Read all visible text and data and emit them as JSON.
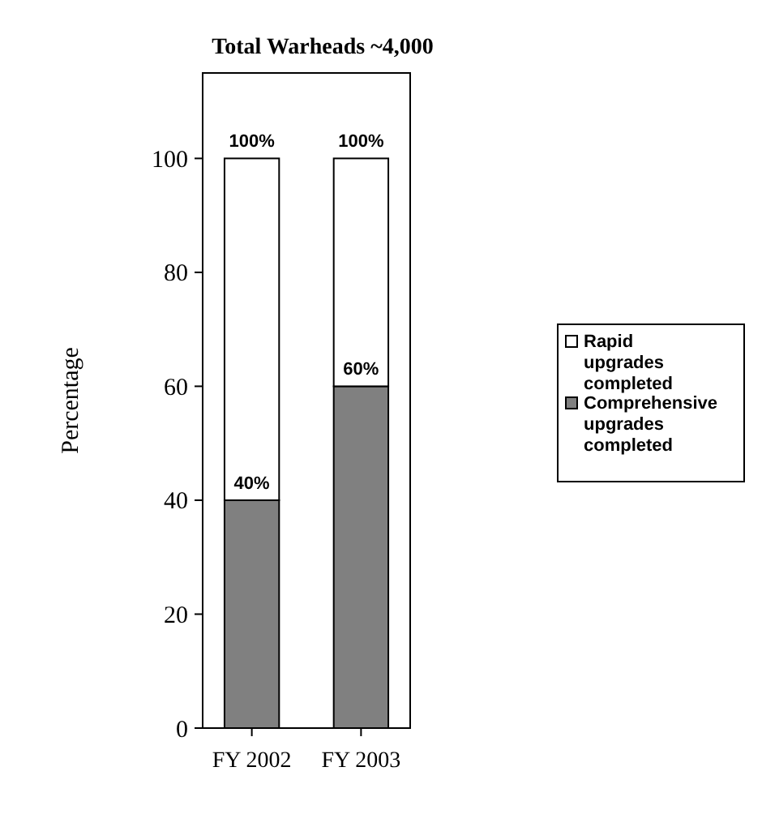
{
  "chart_data": {
    "type": "bar",
    "title": "Total Warheads ~4,000",
    "ylabel": "Percentage",
    "categories": [
      "FY 2002",
      "FY 2003"
    ],
    "stacked": true,
    "series": [
      {
        "name": "Comprehensive upgrades completed",
        "color": "#808080",
        "values": [
          40,
          60
        ],
        "value_labels": [
          "40%",
          "60%"
        ]
      },
      {
        "name": "Rapid upgrades completed",
        "color": "#ffffff",
        "values": [
          60,
          40
        ]
      }
    ],
    "totals": [
      "100%",
      "100%"
    ],
    "ylim": [
      0,
      115
    ],
    "yticks": [
      0,
      20,
      40,
      60,
      80,
      100
    ],
    "grid": false,
    "legend": "right"
  }
}
